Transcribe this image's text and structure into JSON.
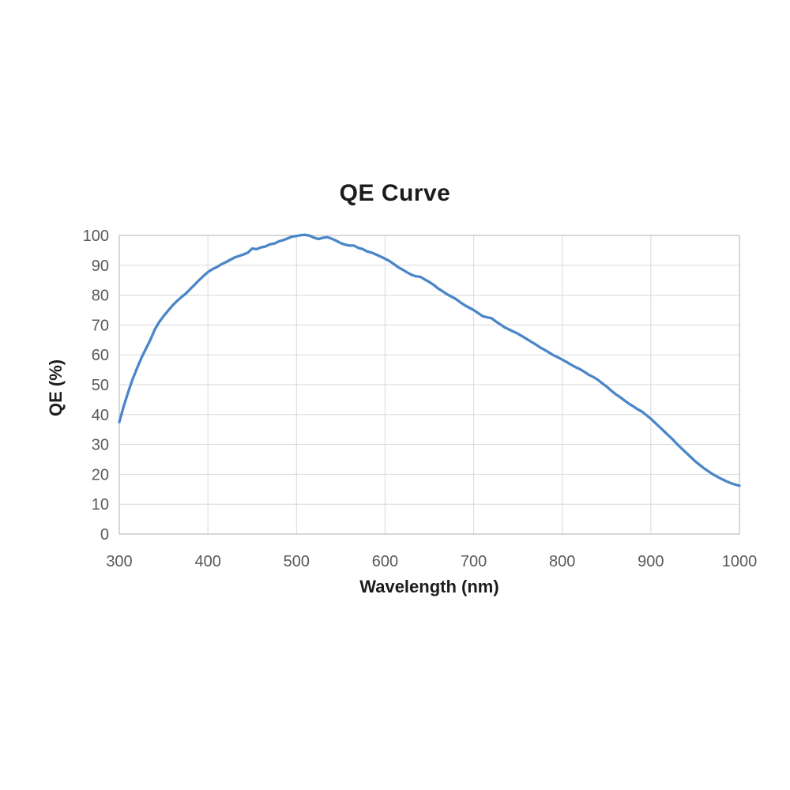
{
  "chart_data": {
    "type": "line",
    "title": "QE Curve",
    "xlabel": "Wavelength (nm)",
    "ylabel": "QE (%)",
    "xlim": [
      300,
      1000
    ],
    "ylim": [
      0,
      100
    ],
    "x_ticks": [
      300,
      400,
      500,
      600,
      700,
      800,
      900,
      1000
    ],
    "y_ticks": [
      0,
      10,
      20,
      30,
      40,
      50,
      60,
      70,
      80,
      90,
      100
    ],
    "grid": true,
    "legend_position": "none",
    "series": [
      {
        "name": "QE",
        "color": "#4a86c8",
        "points": [
          [
            300,
            37.5
          ],
          [
            305,
            42.8
          ],
          [
            310,
            47.5
          ],
          [
            315,
            51.8
          ],
          [
            320,
            55.5
          ],
          [
            325,
            59.0
          ],
          [
            330,
            62.0
          ],
          [
            335,
            65.0
          ],
          [
            340,
            68.5
          ],
          [
            345,
            71.0
          ],
          [
            350,
            73.0
          ],
          [
            355,
            74.8
          ],
          [
            360,
            76.5
          ],
          [
            365,
            78.0
          ],
          [
            370,
            79.3
          ],
          [
            375,
            80.5
          ],
          [
            380,
            82.0
          ],
          [
            385,
            83.5
          ],
          [
            390,
            85.0
          ],
          [
            395,
            86.4
          ],
          [
            400,
            87.7
          ],
          [
            405,
            88.7
          ],
          [
            410,
            89.4
          ],
          [
            415,
            90.3
          ],
          [
            420,
            91.0
          ],
          [
            425,
            91.8
          ],
          [
            430,
            92.6
          ],
          [
            435,
            93.1
          ],
          [
            440,
            93.6
          ],
          [
            445,
            94.2
          ],
          [
            450,
            95.6
          ],
          [
            455,
            95.4
          ],
          [
            460,
            96.0
          ],
          [
            465,
            96.3
          ],
          [
            470,
            97.0
          ],
          [
            475,
            97.3
          ],
          [
            480,
            98.0
          ],
          [
            485,
            98.4
          ],
          [
            490,
            99.0
          ],
          [
            495,
            99.6
          ],
          [
            500,
            99.8
          ],
          [
            505,
            100.1
          ],
          [
            510,
            100.2
          ],
          [
            515,
            99.9
          ],
          [
            520,
            99.2
          ],
          [
            525,
            98.8
          ],
          [
            530,
            99.2
          ],
          [
            535,
            99.4
          ],
          [
            540,
            98.9
          ],
          [
            545,
            98.2
          ],
          [
            550,
            97.4
          ],
          [
            555,
            96.9
          ],
          [
            560,
            96.6
          ],
          [
            565,
            96.6
          ],
          [
            570,
            95.8
          ],
          [
            575,
            95.4
          ],
          [
            580,
            94.6
          ],
          [
            585,
            94.2
          ],
          [
            590,
            93.6
          ],
          [
            595,
            92.9
          ],
          [
            600,
            92.2
          ],
          [
            605,
            91.4
          ],
          [
            610,
            90.4
          ],
          [
            615,
            89.3
          ],
          [
            620,
            88.5
          ],
          [
            625,
            87.6
          ],
          [
            630,
            86.8
          ],
          [
            635,
            86.3
          ],
          [
            640,
            86.1
          ],
          [
            645,
            85.2
          ],
          [
            650,
            84.4
          ],
          [
            655,
            83.4
          ],
          [
            660,
            82.2
          ],
          [
            665,
            81.3
          ],
          [
            670,
            80.3
          ],
          [
            675,
            79.5
          ],
          [
            680,
            78.7
          ],
          [
            685,
            77.6
          ],
          [
            690,
            76.6
          ],
          [
            695,
            75.8
          ],
          [
            700,
            75.0
          ],
          [
            705,
            74.0
          ],
          [
            710,
            73.0
          ],
          [
            715,
            72.6
          ],
          [
            720,
            72.3
          ],
          [
            725,
            71.2
          ],
          [
            730,
            70.2
          ],
          [
            735,
            69.2
          ],
          [
            740,
            68.5
          ],
          [
            745,
            67.8
          ],
          [
            750,
            67.1
          ],
          [
            755,
            66.2
          ],
          [
            760,
            65.3
          ],
          [
            765,
            64.4
          ],
          [
            770,
            63.5
          ],
          [
            775,
            62.5
          ],
          [
            780,
            61.7
          ],
          [
            785,
            60.8
          ],
          [
            790,
            59.9
          ],
          [
            795,
            59.2
          ],
          [
            800,
            58.4
          ],
          [
            805,
            57.6
          ],
          [
            810,
            56.7
          ],
          [
            815,
            55.9
          ],
          [
            820,
            55.2
          ],
          [
            825,
            54.3
          ],
          [
            830,
            53.3
          ],
          [
            835,
            52.6
          ],
          [
            840,
            51.7
          ],
          [
            845,
            50.5
          ],
          [
            850,
            49.4
          ],
          [
            855,
            48.1
          ],
          [
            860,
            46.9
          ],
          [
            865,
            45.9
          ],
          [
            870,
            44.8
          ],
          [
            875,
            43.7
          ],
          [
            880,
            42.8
          ],
          [
            885,
            41.8
          ],
          [
            890,
            41.0
          ],
          [
            895,
            39.8
          ],
          [
            900,
            38.6
          ],
          [
            905,
            37.2
          ],
          [
            910,
            35.8
          ],
          [
            915,
            34.4
          ],
          [
            920,
            33.0
          ],
          [
            925,
            31.6
          ],
          [
            930,
            30.0
          ],
          [
            935,
            28.6
          ],
          [
            940,
            27.2
          ],
          [
            945,
            25.8
          ],
          [
            950,
            24.4
          ],
          [
            955,
            23.2
          ],
          [
            960,
            22.0
          ],
          [
            965,
            21.0
          ],
          [
            970,
            20.0
          ],
          [
            975,
            19.2
          ],
          [
            980,
            18.4
          ],
          [
            985,
            17.7
          ],
          [
            990,
            17.1
          ],
          [
            995,
            16.6
          ],
          [
            1000,
            16.2
          ]
        ]
      }
    ]
  },
  "style": {
    "background_color": "#ffffff",
    "line_color": "#4a86c8",
    "grid_color": "#d9d9d9",
    "plot_border_color": "#bfbfbf",
    "tick_label_color": "#595959",
    "title_color": "#1c1c1c",
    "axis_title_color": "#1c1c1c"
  }
}
